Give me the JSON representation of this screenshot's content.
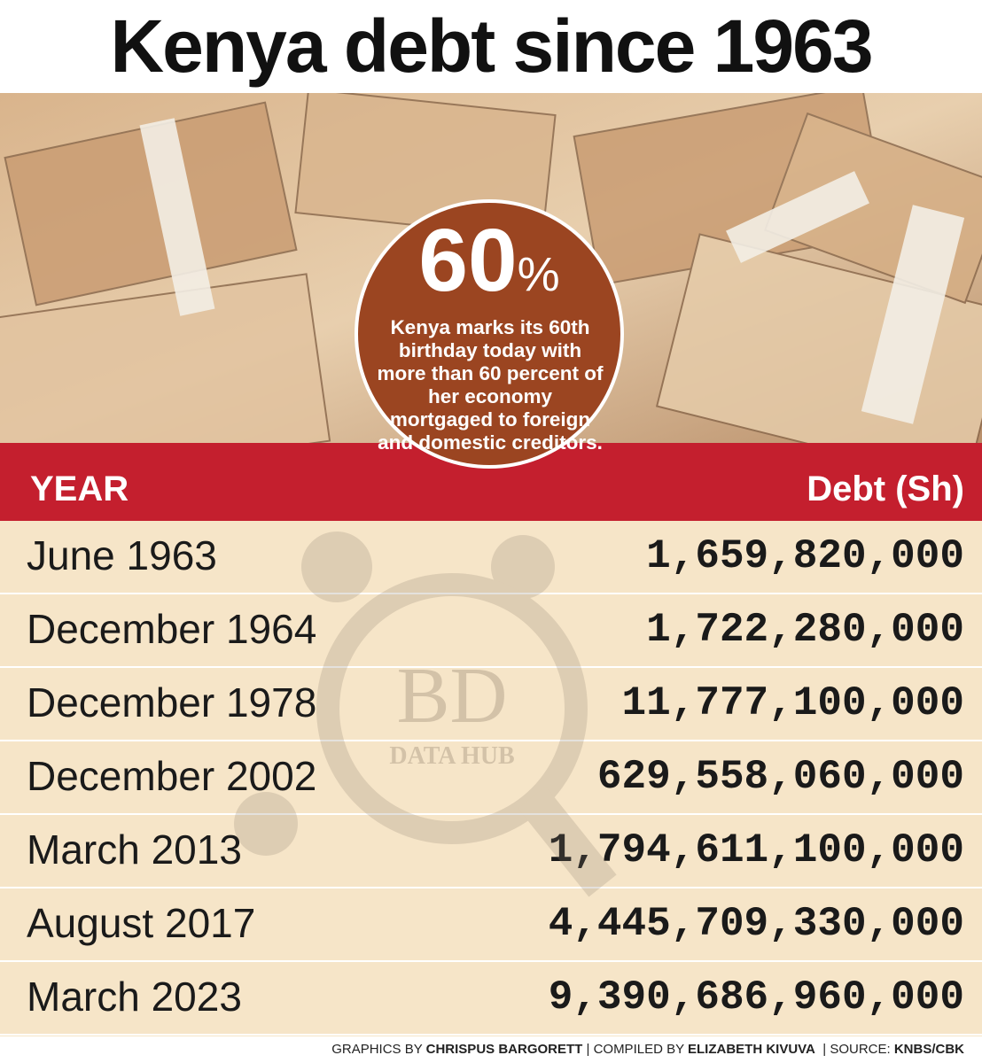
{
  "header": {
    "title": "Kenya debt since 1963"
  },
  "callout": {
    "figure": "60",
    "unit": "%",
    "text": "Kenya marks its 60th birthday today with more than 60 percent of her economy mortgaged to foreign and domestic creditors."
  },
  "table": {
    "columns": [
      "YEAR",
      "Debt (Sh)"
    ],
    "rows": [
      [
        "June 1963",
        "1,659,820,000"
      ],
      [
        "December 1964",
        "1,722,280,000"
      ],
      [
        "December 1978",
        "11,777,100,000"
      ],
      [
        "December 2002",
        "629,558,060,000"
      ],
      [
        "March 2013",
        "1,794,611,100,000"
      ],
      [
        "August 2017",
        "4,445,709,330,000"
      ],
      [
        "March 2023",
        "9,390,686,960,000"
      ]
    ]
  },
  "watermark": {
    "logo": "BD",
    "tagline": "DATA HUB"
  },
  "footer": {
    "graphics_label": "GRAPHICS BY",
    "graphics_by": "CHRISPUS BARGORETT",
    "compiled_label": "| COMPILED BY",
    "compiled_by": "ELIZABETH KIVUVA",
    "source_label": "| SOURCE:",
    "source": "KNBS/CBK"
  }
}
